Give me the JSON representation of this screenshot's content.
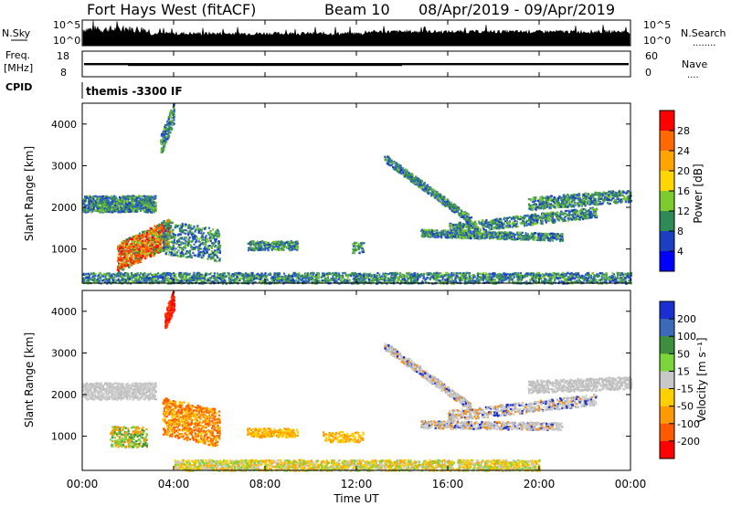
{
  "header": {
    "title": "Fort Hays West (fitACF)",
    "beam": "Beam 10",
    "dates": "08/Apr/2019 - 09/Apr/2019"
  },
  "sky_panel": {
    "left_label": "N.Sky",
    "left_top": "10^5",
    "left_bottom": "10^0",
    "right_top": "10^5",
    "right_bottom": "10^0",
    "right_label": "N.Search",
    "right_dots": "........"
  },
  "freq_panel": {
    "left_label_1": "Freq.",
    "left_label_2": "[MHz]",
    "left_top": "18",
    "left_bottom": "8",
    "right_top": "60",
    "right_bottom": "0",
    "right_label": "Nave",
    "right_dots": "...."
  },
  "cpid": {
    "label": "CPID",
    "value": "themis -3300 IF"
  },
  "chart_data": [
    {
      "type": "heatmap",
      "name": "power",
      "ylabel": "Slant Range [km]",
      "xlabel": "",
      "ylim": [
        180,
        4500
      ],
      "yticks": [
        "4000",
        "3000",
        "2000",
        "1000"
      ],
      "colorbar": {
        "label": "Power [dB]",
        "ticks": [
          "28",
          "24",
          "20",
          "16",
          "12",
          "8",
          "4"
        ],
        "colors": [
          "#ff0000",
          "#ff6a00",
          "#ffa500",
          "#ffd700",
          "#7ccc2e",
          "#2e8b57",
          "#1c3fbf",
          "#0000ff"
        ]
      }
    },
    {
      "type": "heatmap",
      "name": "velocity",
      "ylabel": "Slant Range [km]",
      "xlabel": "Time UT",
      "ylim": [
        180,
        4500
      ],
      "xlim_hours": [
        0,
        24
      ],
      "xticks": [
        "00:00",
        "04:00",
        "08:00",
        "12:00",
        "16:00",
        "20:00",
        "00:00"
      ],
      "yticks": [
        "4000",
        "3000",
        "2000",
        "1000"
      ],
      "colorbar": {
        "label": "Velocity [m s⁻¹]",
        "ticks": [
          "200",
          "100",
          "50",
          "15",
          "-15",
          "-50",
          "-100",
          "-200"
        ],
        "colors": [
          "#1a2fd1",
          "#3a6ab8",
          "#3d8f3d",
          "#7ad63a",
          "#c8c8c8",
          "#ffd000",
          "#ff9a00",
          "#ff5a00",
          "#ff0000"
        ]
      }
    }
  ]
}
